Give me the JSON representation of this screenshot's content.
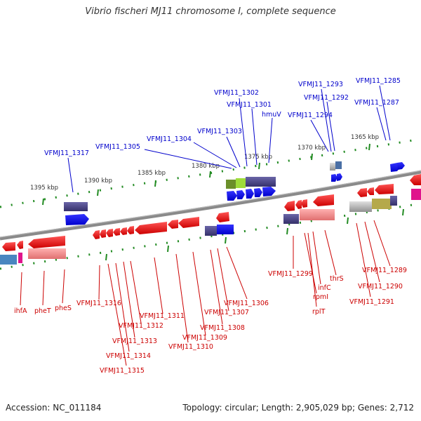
{
  "title": "Vibrio fischeri MJ11 chromosome I, complete sequence",
  "accession": "Accession: NC_011184",
  "topology": "Topology: circular; Length: 2,905,029 bp; Genes: 2,712",
  "colors": {
    "forward_label": "#0000cc",
    "reverse_label": "#cc0000",
    "backbone": "#888888",
    "ticks": "#228b22"
  },
  "scale_labels": [
    "1395 kbp",
    "1390 kbp",
    "1385 kbp",
    "1380 kbp",
    "1375 kbp",
    "1370 kbp",
    "1365 kbp"
  ],
  "forward_genes": [
    "VFMJ11_1317",
    "VFMJ11_1305",
    "VFMJ11_1304",
    "VFMJ11_1303",
    "VFMJ11_1302",
    "VFMJ11_1301",
    "hmuV",
    "VFMJ11_1294",
    "VFMJ11_1293",
    "VFMJ11_1292",
    "VFMJ11_1285",
    "VFMJ11_1287"
  ],
  "reverse_genes": [
    "ihfA",
    "pheT",
    "pheS",
    "VFMJ11_1316",
    "VFMJ11_1315",
    "VFMJ11_1314",
    "VFMJ11_1313",
    "VFMJ11_1312",
    "VFMJ11_1311",
    "VFMJ11_1310",
    "VFMJ11_1309",
    "VFMJ11_1308",
    "VFMJ11_1307",
    "VFMJ11_1306",
    "VFMJ11_1299",
    "rpmI",
    "rplT",
    "infC",
    "thrS",
    "VFMJ11_1289",
    "VFMJ11_1290",
    "VFMJ11_1291"
  ]
}
